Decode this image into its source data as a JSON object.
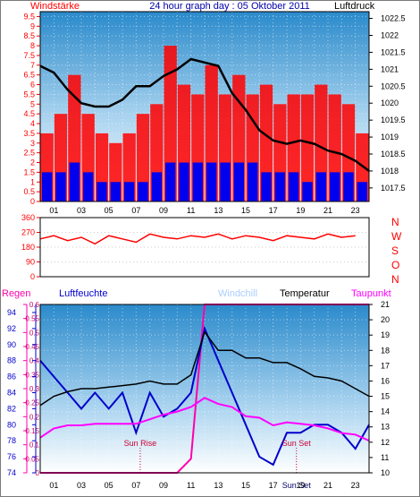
{
  "chart_data": [
    {
      "type": "bar+line",
      "title": "24 hour graph day : 05 Oktober 2011",
      "left_label": "Windstärke",
      "right_label": "Luftdruck",
      "x_ticks": [
        "01",
        "03",
        "05",
        "07",
        "09",
        "11",
        "13",
        "15",
        "17",
        "19",
        "21",
        "23"
      ],
      "y_left_ticks": [
        "0",
        "0.5",
        "1",
        "1.5",
        "2",
        "2.5",
        "3",
        "3.5",
        "4",
        "4.5",
        "5",
        "5.5",
        "6",
        "6.5",
        "7",
        "7.5",
        "8",
        "8.5",
        "9",
        "9.5"
      ],
      "y_left_range": [
        0,
        9.75
      ],
      "y_right_ticks": [
        "1017.5",
        "1018",
        "1018.5",
        "1019",
        "1019.5",
        "1020",
        "1020.5",
        "1021",
        "1021.5",
        "1022",
        "1022.5"
      ],
      "y_right_range": [
        1017.1,
        1022.7
      ],
      "pressure_hourly": {
        "x": [
          0,
          1,
          2,
          3,
          4,
          5,
          6,
          7,
          8,
          9,
          10,
          11,
          12,
          13,
          14,
          15,
          16,
          17,
          18,
          19,
          20,
          21,
          22,
          23,
          24
        ],
        "y": [
          1021.1,
          1020.9,
          1020.4,
          1020.0,
          1019.9,
          1019.9,
          1020.1,
          1020.5,
          1020.5,
          1020.8,
          1021.0,
          1021.3,
          1021.2,
          1021.1,
          1020.3,
          1019.8,
          1019.2,
          1018.9,
          1018.8,
          1018.9,
          1018.8,
          1018.6,
          1018.5,
          1018.3,
          1018.0
        ]
      },
      "wind_gust_hourly": {
        "x": [
          0,
          1,
          2,
          3,
          4,
          5,
          6,
          7,
          8,
          9,
          10,
          11,
          12,
          13,
          14,
          15,
          16,
          17,
          18,
          19,
          20,
          21,
          22,
          23
        ],
        "y": [
          3.5,
          4.5,
          6.5,
          4.5,
          3.5,
          3.0,
          3.5,
          4.5,
          5.0,
          8.0,
          6.0,
          5.5,
          7.0,
          5.5,
          6.5,
          5.5,
          6.0,
          5.0,
          5.5,
          5.5,
          6.0,
          5.5,
          5.0,
          3.5
        ]
      },
      "wind_avg_hourly": {
        "x": [
          0,
          1,
          2,
          3,
          4,
          5,
          6,
          7,
          8,
          9,
          10,
          11,
          12,
          13,
          14,
          15,
          16,
          17,
          18,
          19,
          20,
          21,
          22,
          23
        ],
        "y": [
          1.5,
          1.5,
          2.0,
          1.5,
          1.0,
          1.0,
          1.0,
          1.0,
          1.5,
          2.0,
          2.0,
          2.0,
          2.0,
          2.0,
          2.0,
          2.0,
          1.5,
          1.5,
          1.5,
          1.0,
          1.5,
          1.5,
          1.5,
          1.0
        ]
      }
    },
    {
      "type": "line",
      "y_left_ticks": [
        "0",
        "90",
        "180",
        "270",
        "360"
      ],
      "y_left_range": [
        0,
        360
      ],
      "right_labels": [
        "N",
        "W",
        "S",
        "O",
        "N"
      ],
      "wind_direction_hourly": {
        "x": [
          0,
          1,
          2,
          3,
          4,
          5,
          6,
          7,
          8,
          9,
          10,
          11,
          12,
          13,
          14,
          15,
          16,
          17,
          18,
          19,
          20,
          21,
          22,
          23
        ],
        "y": [
          230,
          250,
          220,
          240,
          200,
          250,
          230,
          210,
          260,
          240,
          230,
          250,
          240,
          260,
          230,
          250,
          240,
          220,
          250,
          240,
          230,
          260,
          240,
          250
        ]
      }
    },
    {
      "type": "line",
      "labels": [
        "Regen",
        "Luftfeuchte",
        "Windchill",
        "Temperatur",
        "Taupunkt"
      ],
      "x_ticks": [
        "01",
        "03",
        "05",
        "07",
        "09",
        "11",
        "13",
        "15",
        "17",
        "19",
        "21",
        "23"
      ],
      "rain_ticks": [
        "0",
        "0.05",
        "0.1",
        "0.15",
        "0.2",
        "0.25",
        "0.3",
        "0.35",
        "0.4",
        "0.45",
        "0.5",
        "0.55",
        "0.6"
      ],
      "rain_range": [
        0,
        0.6
      ],
      "humidity_ticks": [
        "74",
        "76",
        "78",
        "80",
        "82",
        "84",
        "86",
        "88",
        "90",
        "92",
        "94"
      ],
      "humidity_range": [
        74,
        95
      ],
      "temperature_ticks": [
        "10",
        "11",
        "12",
        "13",
        "14",
        "15",
        "16",
        "17",
        "18",
        "19",
        "20",
        "21"
      ],
      "temperature_range": [
        10,
        21
      ],
      "annotations": [
        "Sun Rise",
        "Sun Set",
        "Sun Set"
      ],
      "sun_rise_hour": 7.3,
      "sun_set_hour": 18.7,
      "temperature_hourly": {
        "x": [
          0,
          1,
          2,
          3,
          4,
          5,
          6,
          7,
          8,
          9,
          10,
          11,
          12,
          13,
          14,
          15,
          16,
          17,
          18,
          19,
          20,
          21,
          22,
          23,
          24
        ],
        "y": [
          14.4,
          15.0,
          15.3,
          15.5,
          15.5,
          15.6,
          15.7,
          15.8,
          16.0,
          15.8,
          15.8,
          16.4,
          19.2,
          18.0,
          18.0,
          17.5,
          17.5,
          17.2,
          17.2,
          16.8,
          16.3,
          16.2,
          16.0,
          15.5,
          15.0
        ]
      },
      "dewpoint_hourly": {
        "x": [
          0,
          1,
          2,
          3,
          4,
          5,
          6,
          7,
          8,
          9,
          10,
          11,
          12,
          13,
          14,
          15,
          16,
          17,
          18,
          19,
          20,
          21,
          22,
          23,
          24
        ],
        "y": [
          12.3,
          12.9,
          13.1,
          13.1,
          13.2,
          13.2,
          13.2,
          13.2,
          13.5,
          13.8,
          14.0,
          14.3,
          14.9,
          14.5,
          14.3,
          13.7,
          13.6,
          13.1,
          13.3,
          13.2,
          13.1,
          12.9,
          12.6,
          12.5,
          12.1
        ]
      },
      "humidity_hourly": {
        "x": [
          0,
          1,
          2,
          3,
          4,
          5,
          6,
          7,
          8,
          9,
          10,
          11,
          12,
          13,
          14,
          15,
          16,
          17,
          18,
          19,
          20,
          21,
          22,
          23,
          24
        ],
        "y": [
          88,
          86,
          84,
          82,
          84,
          82,
          84,
          79,
          84,
          81,
          82,
          84,
          92,
          88,
          84,
          80,
          76,
          75,
          79,
          79,
          80,
          80,
          79,
          77,
          80
        ]
      },
      "rain_hourly": {
        "x": [
          0,
          1,
          2,
          3,
          4,
          5,
          6,
          7,
          8,
          9,
          10,
          11,
          12,
          13,
          14,
          15,
          16,
          17,
          18,
          19,
          20,
          21,
          22,
          23,
          24
        ],
        "y": [
          0,
          0,
          0,
          0,
          0,
          0,
          0,
          0,
          0,
          0,
          0,
          0.05,
          0.6,
          0.6,
          0.6,
          0.6,
          0.6,
          0.6,
          0.6,
          0.6,
          0.6,
          0.6,
          0.6,
          0.6,
          0.6
        ]
      }
    }
  ],
  "colors": {
    "wind": "#ff0000",
    "wind_avg": "#0000ee",
    "pressure": "#000000",
    "temperature": "#000000",
    "dewpoint": "#ff00ff",
    "humidity": "#0000cc",
    "windchill": "#aaccff",
    "rain": "#ff00aa",
    "title": "#0000aa"
  }
}
